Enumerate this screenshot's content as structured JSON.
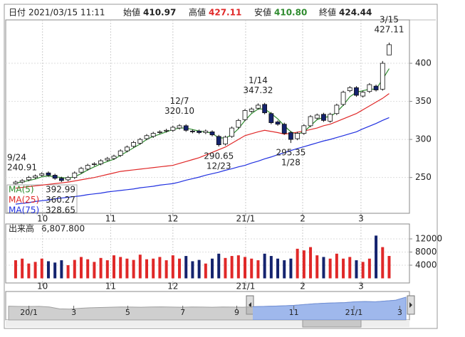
{
  "header": {
    "date_label": "日付",
    "datetime": "2021/03/15 11:11",
    "open_label": "始値",
    "open": 410.97,
    "high_label": "高値",
    "high": 427.11,
    "low_label": "安値",
    "low": {
      "value": 410.8,
      "label": "410.80"
    },
    "close_label": "終値",
    "close": 424.44
  },
  "chart_data": [
    {
      "type": "candlestick",
      "up_color": "#ffffff",
      "down_color": "#14236e",
      "grid": true,
      "open": [
        242,
        244,
        247,
        250,
        253,
        256,
        253,
        249,
        247,
        250,
        257,
        261,
        267,
        268,
        273,
        275,
        279,
        285,
        291,
        295,
        301,
        304,
        309,
        311,
        312,
        315,
        318,
        311,
        311,
        309,
        310,
        304,
        294,
        304,
        316,
        326,
        337,
        341,
        346,
        334,
        323,
        320,
        309,
        301,
        308,
        318,
        328,
        333,
        324,
        334,
        346,
        364,
        368,
        357,
        363,
        370,
        366,
        410.97
      ],
      "high": [
        246,
        248,
        252,
        254,
        257,
        258,
        255,
        251,
        252,
        258,
        264,
        268,
        270,
        274,
        277,
        280,
        287,
        292,
        298,
        302,
        307,
        310,
        312,
        314,
        318,
        320.1,
        320,
        313,
        313,
        313,
        312,
        306,
        305,
        317,
        327,
        340,
        342,
        347.32,
        348,
        336,
        325,
        322,
        311,
        310,
        320,
        332,
        334,
        335,
        335,
        347,
        364,
        370,
        370,
        364,
        374,
        372,
        403,
        427.11
      ],
      "low": [
        240.91,
        242,
        245,
        248,
        251,
        251,
        247,
        244,
        245,
        248,
        255,
        259,
        265,
        266,
        271,
        273,
        277,
        283,
        289,
        293,
        299,
        302,
        307,
        309,
        310,
        313,
        310,
        308,
        307,
        307,
        304,
        290.65,
        292,
        302,
        314,
        324,
        335,
        339,
        333,
        320,
        318,
        306,
        295.35,
        299,
        306,
        316,
        326,
        323,
        322,
        332,
        344,
        362,
        356,
        355,
        361,
        363,
        364,
        410.8
      ],
      "close": [
        244,
        246,
        250,
        252,
        255,
        253,
        249,
        246,
        250,
        256,
        262,
        266,
        268,
        272,
        275,
        278,
        285,
        290,
        296,
        300,
        305,
        308,
        310,
        312,
        316,
        318,
        312,
        310,
        309,
        311,
        306,
        293,
        303,
        315,
        325,
        338,
        340,
        345,
        335,
        322,
        320,
        308,
        300,
        308,
        318,
        330,
        332,
        325,
        333,
        345,
        362,
        368,
        358,
        362,
        372,
        365,
        400,
        424.44
      ],
      "series": [
        {
          "name": "MA(5)",
          "color": "#2e8b2e",
          "values": [
            243,
            244,
            246,
            248,
            251,
            252,
            251,
            250,
            249,
            251,
            255,
            260,
            264,
            268,
            271,
            274,
            279,
            284,
            289,
            294,
            300,
            304,
            307,
            310,
            313,
            315,
            315,
            313,
            311,
            310,
            308,
            302,
            302,
            306,
            314,
            325,
            334,
            340,
            340,
            334,
            327,
            318,
            310,
            307,
            310,
            318,
            326,
            329,
            330,
            336,
            345,
            356,
            362,
            364,
            366,
            366,
            379,
            392.99
          ]
        },
        {
          "name": "MA(25)",
          "color": "#e02828",
          "values": [
            236,
            237,
            238,
            239,
            240,
            241,
            242,
            243,
            244,
            245.5,
            247,
            248.5,
            250,
            252,
            254,
            256,
            258,
            259,
            260,
            261,
            262,
            263,
            264,
            265,
            266,
            268.5,
            271,
            273.5,
            276,
            279.5,
            283,
            286.5,
            290,
            295,
            300,
            305,
            307.5,
            310,
            312,
            310.5,
            309,
            307,
            308,
            309.5,
            311,
            313,
            315,
            318,
            320,
            323.5,
            327,
            330.5,
            334,
            339,
            344,
            349,
            354,
            360.27
          ]
        },
        {
          "name": "MA(75)",
          "color": "#2030e0",
          "values": [
            215,
            216,
            217,
            218.5,
            219.5,
            220.5,
            222,
            223,
            224,
            225,
            226,
            227.5,
            228.5,
            229.5,
            231,
            232,
            233,
            234,
            235,
            236.5,
            237.5,
            238.5,
            240,
            241,
            242,
            244,
            246.5,
            248.5,
            250.5,
            253,
            255,
            257,
            259.5,
            261.5,
            264,
            266,
            269,
            271.5,
            274.5,
            277,
            280,
            282.5,
            285.5,
            288,
            290.5,
            293,
            295.5,
            298,
            300,
            302.5,
            305,
            307.5,
            310,
            314,
            317.5,
            321,
            325,
            328.65
          ]
        }
      ],
      "annotations": [
        {
          "date": "9/24",
          "value": 240.91
        },
        {
          "date": "12/7",
          "value": 320.1,
          "label": "320.10"
        },
        {
          "date": "12/23",
          "value": 290.65
        },
        {
          "date": "1/14",
          "value": 347.32
        },
        {
          "date": "1/28",
          "value": 295.35
        },
        {
          "date": "3/15",
          "value": 427.11
        }
      ],
      "xlim": [
        -1.3,
        60.1
      ],
      "ylim": [
        203,
        457
      ],
      "yticks": [
        250,
        300,
        350,
        400
      ],
      "xticks": [
        {
          "value": 4.1,
          "label": "10"
        },
        {
          "value": 14.5,
          "label": "11"
        },
        {
          "value": 24,
          "label": "12"
        },
        {
          "value": 35.1,
          "label": "21/1"
        },
        {
          "value": 43.8,
          "label": "2"
        },
        {
          "value": 52.7,
          "label": "3"
        }
      ]
    },
    {
      "type": "bar",
      "title": "出来高",
      "current_label": "6,807.800",
      "up_color": "#e02828",
      "down_color": "#14236e",
      "values": [
        5500,
        6000,
        4500,
        5000,
        6000,
        5200,
        4800,
        5500,
        4000,
        5600,
        6500,
        5800,
        5000,
        6200,
        5500,
        7000,
        6500,
        6000,
        5600,
        7200,
        5800,
        6000,
        6500,
        5500,
        7000,
        6000,
        6800,
        5200,
        5600,
        4500,
        6000,
        7500,
        6200,
        6800,
        7000,
        6500,
        6000,
        5500,
        7500,
        6800,
        6000,
        5500,
        6000,
        9000,
        8500,
        9500,
        7000,
        6500,
        6000,
        7500,
        6000,
        6500,
        5500,
        5000,
        6000,
        13000,
        9500,
        6807.8
      ],
      "xlim": [
        -1.3,
        60.1
      ],
      "ylim": [
        0,
        16000
      ],
      "yticks": [
        4000,
        8000,
        12000
      ],
      "xticks": [
        {
          "value": 4.1,
          "label": "10"
        },
        {
          "value": 14.5,
          "label": "11"
        },
        {
          "value": 24,
          "label": "12"
        },
        {
          "value": 35.1,
          "label": "21/1"
        },
        {
          "value": 43.8,
          "label": "2"
        },
        {
          "value": 52.7,
          "label": "3"
        }
      ]
    },
    {
      "type": "area",
      "color": "#a0a0a0",
      "selected_color": "#9fb8ec",
      "values": [
        255,
        250,
        248,
        252,
        240,
        205,
        200,
        215,
        225,
        230,
        235,
        240,
        238,
        236,
        240,
        242,
        238,
        235,
        240,
        238,
        236,
        240,
        238,
        235,
        245,
        250,
        255,
        262,
        270,
        285,
        300,
        310,
        315,
        320,
        335,
        340,
        335,
        350,
        365,
        420
      ],
      "xlim": [
        0,
        39
      ],
      "ylim": [
        0,
        500
      ],
      "xticks": [
        {
          "value": 2,
          "label": "20/1"
        },
        {
          "value": 6.4,
          "label": "3"
        },
        {
          "value": 11.7,
          "label": "5"
        },
        {
          "value": 17.1,
          "label": "7"
        },
        {
          "value": 22.4,
          "label": "9"
        },
        {
          "value": 28,
          "label": "11"
        },
        {
          "value": 33.9,
          "label": "21/1"
        },
        {
          "value": 38.4,
          "label": "3"
        }
      ]
    }
  ]
}
